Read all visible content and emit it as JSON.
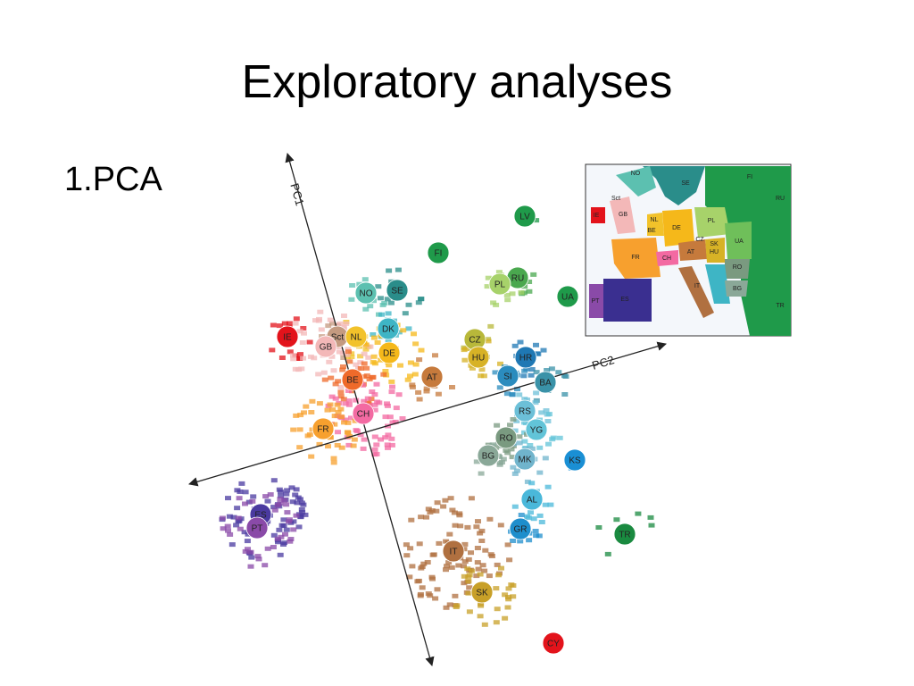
{
  "header": {
    "title": "Exploratory analyses"
  },
  "list": {
    "items": [
      "1.PCA"
    ]
  },
  "figure": {
    "axes": {
      "pc1": "PC1",
      "pc2": "PC2"
    },
    "centroids": [
      {
        "label": "LV",
        "color": "#1f9a4a"
      },
      {
        "label": "FI",
        "color": "#1f9a4a"
      },
      {
        "label": "RU",
        "color": "#4aa84f"
      },
      {
        "label": "PL",
        "color": "#a7d26a"
      },
      {
        "label": "UA",
        "color": "#1f9a4a"
      },
      {
        "label": "NO",
        "color": "#5cc0b0"
      },
      {
        "label": "SE",
        "color": "#2a8d8a"
      },
      {
        "label": "DK",
        "color": "#3eb5c5"
      },
      {
        "label": "Sct",
        "color": "#c49a80"
      },
      {
        "label": "NL",
        "color": "#f2c22a"
      },
      {
        "label": "IE",
        "color": "#e3131b"
      },
      {
        "label": "GB",
        "color": "#f3b8b8"
      },
      {
        "label": "DE",
        "color": "#f5b81a"
      },
      {
        "label": "CZ",
        "color": "#b8b83a"
      },
      {
        "label": "HU",
        "color": "#d7b226"
      },
      {
        "label": "AT",
        "color": "#c67a3c"
      },
      {
        "label": "BE",
        "color": "#ef6a2a"
      },
      {
        "label": "HR",
        "color": "#1f78b4"
      },
      {
        "label": "SI",
        "color": "#2b8cbe"
      },
      {
        "label": "BA",
        "color": "#3a92a8"
      },
      {
        "label": "CH",
        "color": "#f36aa2"
      },
      {
        "label": "FR",
        "color": "#f7a02e"
      },
      {
        "label": "RS",
        "color": "#6cc0d8"
      },
      {
        "label": "YG",
        "color": "#62c4d8"
      },
      {
        "label": "RO",
        "color": "#7a9a80"
      },
      {
        "label": "BG",
        "color": "#8aa898"
      },
      {
        "label": "MK",
        "color": "#70b4cc"
      },
      {
        "label": "KS",
        "color": "#1a8fd4"
      },
      {
        "label": "AL",
        "color": "#4ab8da"
      },
      {
        "label": "GR",
        "color": "#1e8ecc"
      },
      {
        "label": "TR",
        "color": "#1a8a40"
      },
      {
        "label": "ES",
        "color": "#4a3aa0"
      },
      {
        "label": "PT",
        "color": "#8a4aa8"
      },
      {
        "label": "IT",
        "color": "#b07040"
      },
      {
        "label": "SK",
        "color": "#c8a028"
      },
      {
        "label": "CY",
        "color": "#e3131b"
      }
    ],
    "map": {
      "labels": [
        "NO",
        "SE",
        "FI",
        "RU",
        "Sct",
        "GB",
        "IE",
        "NL",
        "BE",
        "DE",
        "PL",
        "UA",
        "CZ",
        "SK",
        "FR",
        "CH",
        "AT",
        "HU",
        "RO",
        "IT",
        "BG",
        "ES",
        "PT",
        "TR"
      ]
    }
  }
}
